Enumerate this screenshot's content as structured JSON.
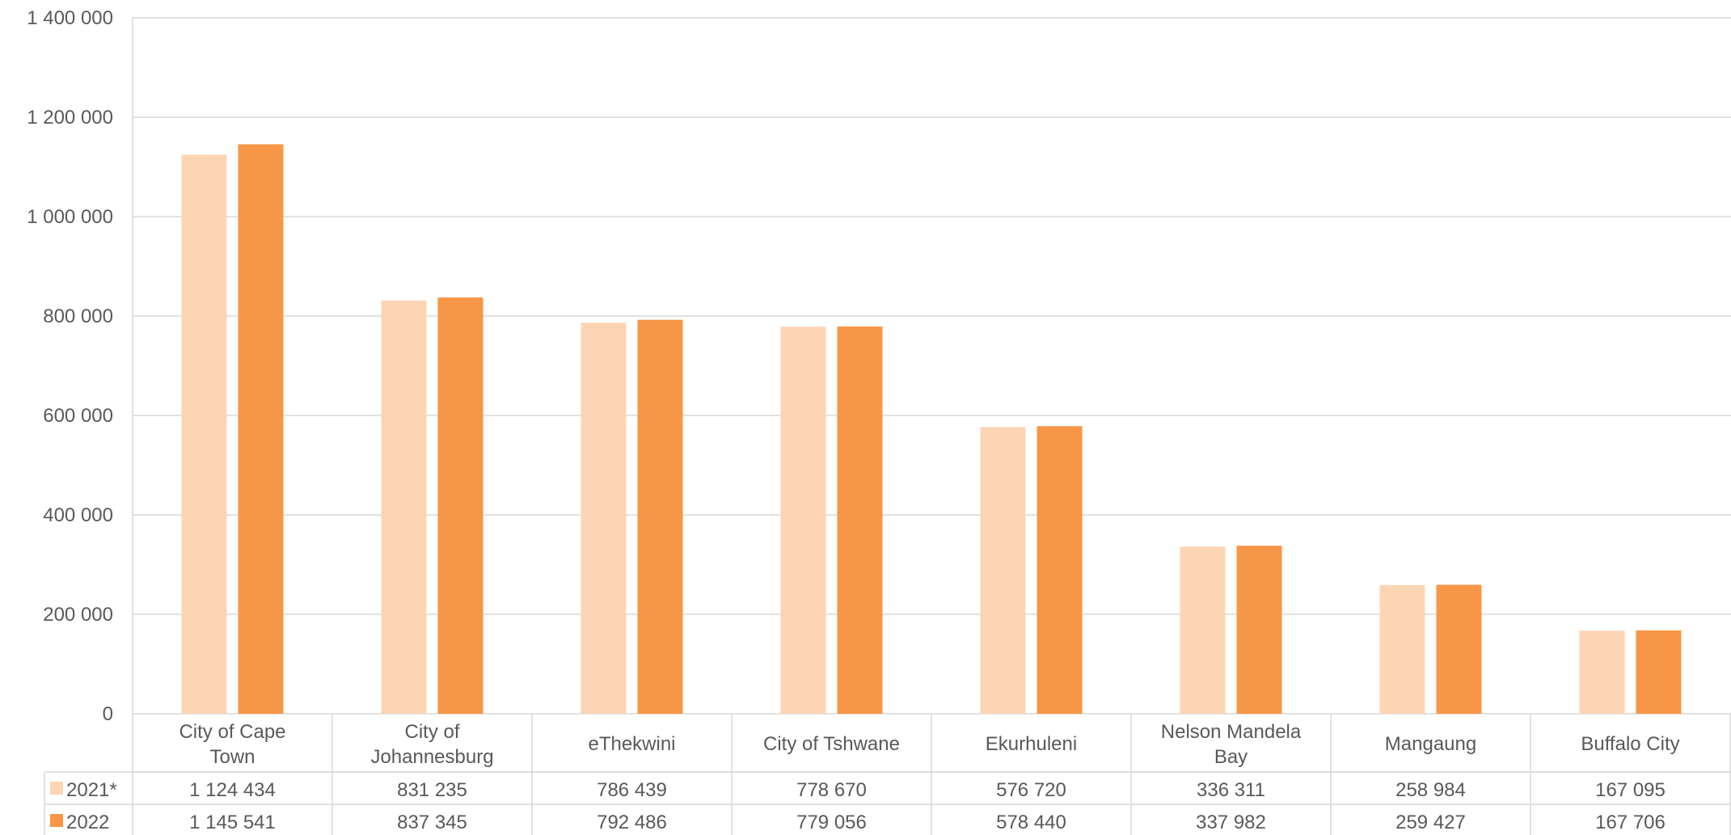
{
  "chart_data": {
    "type": "bar",
    "categories": [
      [
        "City of Cape",
        "Town"
      ],
      [
        "City of",
        "Johannesburg"
      ],
      [
        "eThekwini"
      ],
      [
        "City of Tshwane"
      ],
      [
        "Ekurhuleni"
      ],
      [
        "Nelson Mandela",
        "Bay"
      ],
      [
        "Mangaung"
      ],
      [
        "Buffalo City"
      ]
    ],
    "series": [
      {
        "name": "2021*",
        "color": "#FCD5B5",
        "values": [
          1124434,
          831235,
          786439,
          778670,
          576720,
          336311,
          258984,
          167095
        ],
        "labels": [
          "1 124 434",
          "831 235",
          "786 439",
          "778 670",
          "576 720",
          "336 311",
          "258 984",
          "167 095"
        ]
      },
      {
        "name": "2022",
        "color": "#F79646",
        "values": [
          1145541,
          837345,
          792486,
          779056,
          578440,
          337982,
          259427,
          167706
        ],
        "labels": [
          "1 145 541",
          "837 345",
          "792 486",
          "779 056",
          "578 440",
          "337 982",
          "259 427",
          "167 706"
        ]
      }
    ],
    "ylim": [
      0,
      1400000
    ],
    "yticks": [
      {
        "value": 0,
        "label": "0"
      },
      {
        "value": 200000,
        "label": "200 000"
      },
      {
        "value": 400000,
        "label": "400 000"
      },
      {
        "value": 600000,
        "label": "600 000"
      },
      {
        "value": 800000,
        "label": "800 000"
      },
      {
        "value": 1000000,
        "label": "1 000 000"
      },
      {
        "value": 1200000,
        "label": "1 200 000"
      },
      {
        "value": 1400000,
        "label": "1 400 000"
      }
    ],
    "grid": true,
    "legend": "data-table"
  }
}
